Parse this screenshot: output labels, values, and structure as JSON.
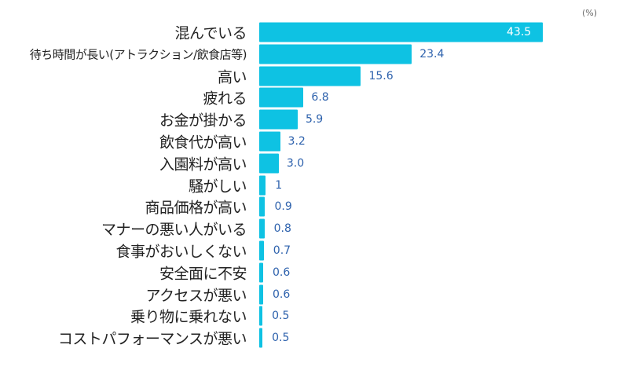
{
  "chart_data": {
    "type": "bar",
    "orientation": "horizontal",
    "unit_label": "(%)",
    "categories": [
      "混んでいる",
      "待ち時間が長い(アトラクション/飲食店等)",
      "高い",
      "疲れる",
      "お金が掛かる",
      "飲食代が高い",
      "入園料が高い",
      "騒がしい",
      "商品価格が高い",
      "マナーの悪い人がいる",
      "食事がおいしくない",
      "安全面に不安",
      "アクセスが悪い",
      "乗り物に乗れない",
      "コストパフォーマンスが悪い"
    ],
    "values": [
      43.5,
      23.4,
      15.6,
      6.8,
      5.9,
      3.2,
      3.0,
      1,
      0.9,
      0.8,
      0.7,
      0.6,
      0.6,
      0.5,
      0.5
    ],
    "value_labels": [
      "43.5",
      "23.4",
      "15.6",
      "6.8",
      "5.9",
      "3.2",
      "3.0",
      "1",
      "0.9",
      "0.8",
      "0.7",
      "0.6",
      "0.6",
      "0.5",
      "0.5"
    ],
    "xlim": [
      0,
      45
    ],
    "grid": false,
    "bar_color": "#0ec2e3",
    "value_color": "#2e62ad"
  }
}
